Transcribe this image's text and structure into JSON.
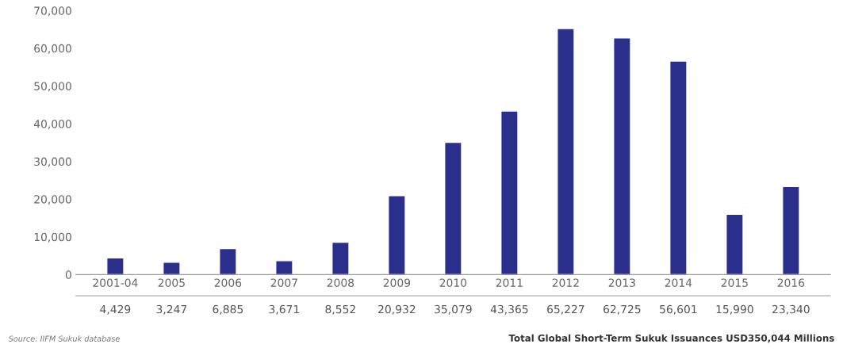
{
  "chart_data": {
    "type": "bar",
    "categories": [
      "2001-04",
      "2005",
      "2006",
      "2007",
      "2008",
      "2009",
      "2010",
      "2011",
      "2012",
      "2013",
      "2014",
      "2015",
      "2016"
    ],
    "values": [
      4429,
      3247,
      6885,
      3671,
      8552,
      20932,
      35079,
      43365,
      65227,
      62725,
      56601,
      15990,
      23340
    ],
    "color": "#2b2f8c",
    "ylim": [
      0,
      70000
    ],
    "yticks": [
      {
        "value": 0,
        "label": "0"
      },
      {
        "value": 10000,
        "label": "10,000"
      },
      {
        "value": 20000,
        "label": "20,000"
      },
      {
        "value": 30000,
        "label": "30,000"
      },
      {
        "value": 40000,
        "label": "40,000"
      },
      {
        "value": 50000,
        "label": "50,000"
      },
      {
        "value": 60000,
        "label": "60,000"
      },
      {
        "value": 70000,
        "label": "70,000"
      }
    ],
    "value_labels": [
      "4,429",
      "3,247",
      "6,885",
      "3,671",
      "8,552",
      "20,932",
      "35,079",
      "43,365",
      "65,227",
      "62,725",
      "56,601",
      "15,990",
      "23,340"
    ],
    "grid": false,
    "annotations": [
      "Source: IIFM Sukuk database",
      "Total Global Short-Term Sukuk Issuances USD350,044 Millions"
    ]
  }
}
